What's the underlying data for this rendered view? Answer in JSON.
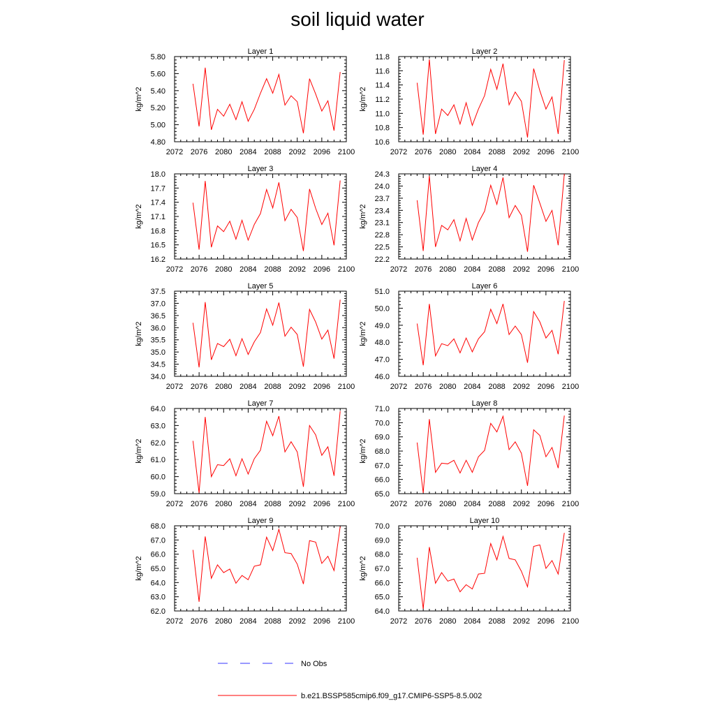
{
  "title": "soil liquid water",
  "ylabel": "kg/m^2",
  "x_ticks": [
    2072,
    2076,
    2080,
    2084,
    2088,
    2092,
    2096,
    2100
  ],
  "xlim": [
    2072,
    2100
  ],
  "x": [
    2075,
    2076,
    2077,
    2078,
    2079,
    2080,
    2081,
    2082,
    2083,
    2084,
    2085,
    2086,
    2087,
    2088,
    2089,
    2090,
    2091,
    2092,
    2093,
    2094,
    2095,
    2096,
    2097,
    2098,
    2099
  ],
  "colors": {
    "series": "#ff0000",
    "no_obs": "#3333ff"
  },
  "legend": [
    {
      "label": "No Obs",
      "style": "dashed",
      "color": "#3333ff"
    },
    {
      "label": "b.e21.BSSP585cmip6.f09_g17.CMIP6-SSP5-8.5.002",
      "style": "solid",
      "color": "#ff0000"
    }
  ],
  "chart_data": [
    {
      "type": "line",
      "title": "Layer 1",
      "ylabel": "kg/m^2",
      "ylim": [
        4.8,
        5.8
      ],
      "yticks": [
        "4.80",
        "5.00",
        "5.20",
        "5.40",
        "5.60",
        "5.80"
      ],
      "values": [
        5.48,
        4.98,
        5.67,
        4.94,
        5.18,
        5.1,
        5.24,
        5.06,
        5.27,
        5.04,
        5.18,
        5.37,
        5.54,
        5.37,
        5.59,
        5.23,
        5.34,
        5.27,
        4.9,
        5.54,
        5.36,
        5.16,
        5.28,
        4.93,
        5.62
      ]
    },
    {
      "type": "line",
      "title": "Layer 2",
      "ylabel": "kg/m^2",
      "ylim": [
        10.6,
        11.8
      ],
      "yticks": [
        "10.6",
        "10.8",
        "11.0",
        "11.2",
        "11.4",
        "11.6",
        "11.8"
      ],
      "values": [
        11.43,
        10.7,
        11.76,
        10.71,
        11.06,
        10.97,
        11.12,
        10.85,
        11.15,
        10.83,
        11.06,
        11.25,
        11.62,
        11.34,
        11.7,
        11.12,
        11.3,
        11.17,
        10.66,
        11.63,
        11.32,
        11.06,
        11.23,
        10.71,
        11.75
      ]
    },
    {
      "type": "line",
      "title": "Layer 3",
      "ylabel": "kg/m^2",
      "ylim": [
        16.2,
        18.0
      ],
      "yticks": [
        "16.2",
        "16.5",
        "16.8",
        "17.1",
        "17.4",
        "17.7",
        "18.0"
      ],
      "values": [
        17.39,
        16.4,
        17.85,
        16.45,
        16.9,
        16.78,
        17.0,
        16.62,
        17.02,
        16.6,
        16.93,
        17.16,
        17.67,
        17.28,
        17.82,
        17.01,
        17.25,
        17.08,
        16.37,
        17.68,
        17.27,
        16.93,
        17.17,
        16.49,
        17.86
      ]
    },
    {
      "type": "line",
      "title": "Layer 4",
      "ylabel": "kg/m^2",
      "ylim": [
        22.2,
        24.3
      ],
      "yticks": [
        "22.2",
        "22.5",
        "22.8",
        "23.1",
        "23.4",
        "23.7",
        "24.0",
        "24.3"
      ],
      "values": [
        23.65,
        22.4,
        24.25,
        22.5,
        23.03,
        22.92,
        23.17,
        22.65,
        23.2,
        22.67,
        23.1,
        23.38,
        24.02,
        23.55,
        24.21,
        23.22,
        23.52,
        23.28,
        22.38,
        24.02,
        23.58,
        23.13,
        23.4,
        22.54,
        24.3
      ]
    },
    {
      "type": "line",
      "title": "Layer 5",
      "ylabel": "kg/m^2",
      "ylim": [
        34.0,
        37.5
      ],
      "yticks": [
        "34.0",
        "34.5",
        "35.0",
        "35.5",
        "36.0",
        "36.5",
        "37.0",
        "37.5"
      ],
      "values": [
        36.2,
        34.37,
        37.05,
        34.68,
        35.35,
        35.22,
        35.52,
        34.85,
        35.55,
        34.9,
        35.42,
        35.8,
        36.77,
        36.1,
        37.03,
        35.65,
        36.02,
        35.72,
        34.4,
        36.75,
        36.23,
        35.53,
        35.9,
        34.73,
        37.15
      ]
    },
    {
      "type": "line",
      "title": "Layer 6",
      "ylabel": "kg/m^2",
      "ylim": [
        46.0,
        51.0
      ],
      "yticks": [
        "46.0",
        "47.0",
        "48.0",
        "49.0",
        "50.0",
        "51.0"
      ],
      "values": [
        49.1,
        46.65,
        50.25,
        47.2,
        47.92,
        47.8,
        48.2,
        47.38,
        48.25,
        47.44,
        48.2,
        48.62,
        49.94,
        49.1,
        50.25,
        48.45,
        48.95,
        48.45,
        46.8,
        49.8,
        49.2,
        48.25,
        48.7,
        47.3,
        50.43
      ]
    },
    {
      "type": "line",
      "title": "Layer 7",
      "ylabel": "kg/m^2",
      "ylim": [
        59.0,
        64.0
      ],
      "yticks": [
        "59.0",
        "60.0",
        "61.0",
        "62.0",
        "63.0",
        "64.0"
      ],
      "values": [
        62.1,
        59.05,
        63.5,
        60.0,
        60.7,
        60.65,
        61.05,
        60.05,
        61.05,
        60.15,
        61.05,
        61.55,
        63.25,
        62.4,
        63.55,
        61.45,
        62.05,
        61.45,
        59.4,
        63.0,
        62.45,
        61.25,
        61.75,
        60.05,
        63.85
      ]
    },
    {
      "type": "line",
      "title": "Layer 8",
      "ylabel": "kg/m^2",
      "ylim": [
        65.0,
        71.0
      ],
      "yticks": [
        "65.0",
        "66.0",
        "67.0",
        "68.0",
        "69.0",
        "70.0",
        "71.0"
      ],
      "values": [
        68.6,
        65.05,
        70.25,
        66.5,
        67.15,
        67.1,
        67.35,
        66.45,
        67.35,
        66.5,
        67.6,
        68.05,
        69.95,
        69.35,
        70.45,
        68.1,
        68.65,
        67.85,
        65.55,
        69.5,
        69.1,
        67.6,
        68.25,
        66.8,
        70.5
      ]
    },
    {
      "type": "line",
      "title": "Layer 9",
      "ylabel": "kg/m^2",
      "ylim": [
        62.0,
        68.0
      ],
      "yticks": [
        "62.0",
        "63.0",
        "64.0",
        "65.0",
        "66.0",
        "67.0",
        "68.0"
      ],
      "values": [
        66.3,
        62.65,
        67.25,
        64.3,
        65.25,
        64.7,
        64.95,
        63.95,
        64.5,
        64.2,
        65.15,
        65.25,
        67.2,
        66.25,
        67.75,
        66.1,
        66.05,
        65.3,
        63.9,
        66.95,
        66.85,
        65.35,
        65.85,
        64.85,
        67.95
      ]
    },
    {
      "type": "line",
      "title": "Layer 10",
      "ylabel": "kg/m^2",
      "ylim": [
        64.0,
        70.0
      ],
      "yticks": [
        "64.0",
        "65.0",
        "66.0",
        "67.0",
        "68.0",
        "69.0",
        "70.0"
      ],
      "values": [
        67.75,
        64.15,
        68.5,
        65.95,
        66.7,
        66.1,
        66.25,
        65.35,
        65.85,
        65.55,
        66.6,
        66.65,
        68.75,
        67.6,
        69.25,
        67.7,
        67.6,
        66.8,
        65.7,
        68.55,
        68.65,
        67.0,
        67.55,
        66.6,
        69.5
      ]
    }
  ]
}
